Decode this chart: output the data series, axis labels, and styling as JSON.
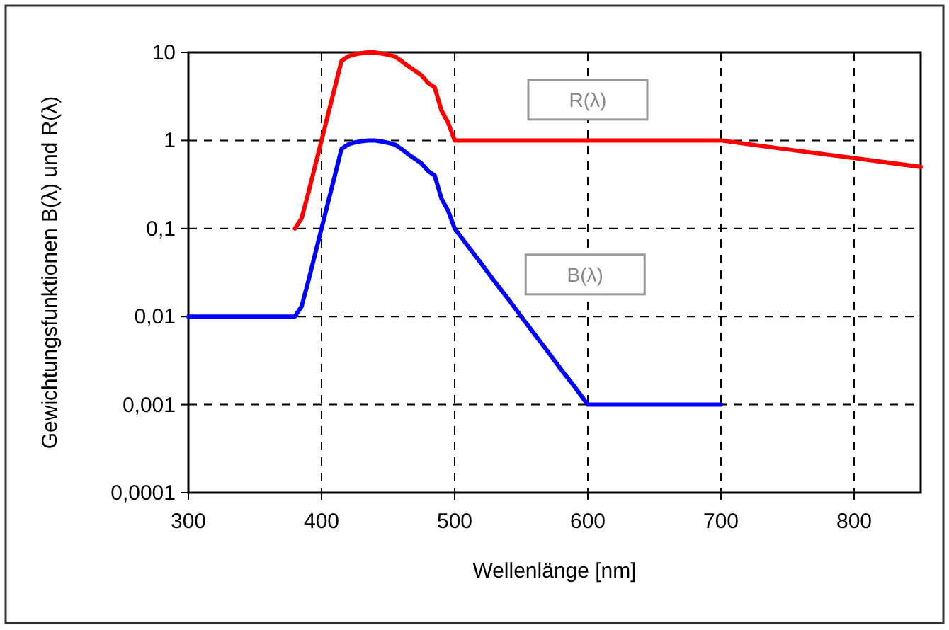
{
  "chart_data": {
    "type": "line",
    "xlabel": "Wellenlänge [nm]",
    "ylabel": "Gewichtungsfunktionen B(λ) und R(λ)",
    "log": "y",
    "grid": true,
    "legend": false,
    "marker": "none",
    "line_style": "solid",
    "xlim": [
      300,
      850
    ],
    "xticks": [
      300,
      400,
      500,
      600,
      700,
      800
    ],
    "ylim": [
      0.0001,
      10
    ],
    "yticks": [
      {
        "value": 0.0001,
        "label": "0,0001"
      },
      {
        "value": 0.001,
        "label": "0,001"
      },
      {
        "value": 0.01,
        "label": "0,01"
      },
      {
        "value": 0.1,
        "label": "0,1"
      },
      {
        "value": 1,
        "label": "1"
      },
      {
        "value": 10,
        "label": "10"
      }
    ],
    "series": [
      {
        "name": "R(λ)",
        "color": "#ff0000",
        "x": [
          380,
          385,
          390,
          395,
          400,
          405,
          410,
          415,
          420,
          425,
          430,
          435,
          440,
          445,
          450,
          455,
          460,
          465,
          470,
          475,
          480,
          485,
          490,
          495,
          500,
          600,
          700,
          750,
          800,
          850
        ],
        "values": [
          0.1,
          0.13,
          0.25,
          0.5,
          1,
          2,
          4,
          8,
          9,
          9.5,
          9.8,
          10,
          10,
          9.7,
          9.4,
          9,
          8,
          7,
          6.2,
          5.5,
          4.5,
          4,
          2.2,
          1.6,
          1,
          1,
          1,
          0.79,
          0.63,
          0.5
        ]
      },
      {
        "name": "B(λ)",
        "color": "#0000ff",
        "x": [
          300,
          380,
          385,
          390,
          395,
          400,
          405,
          410,
          415,
          420,
          425,
          430,
          435,
          440,
          445,
          450,
          455,
          460,
          465,
          470,
          475,
          480,
          485,
          490,
          495,
          500,
          510,
          520,
          530,
          540,
          550,
          560,
          570,
          580,
          590,
          600,
          700
        ],
        "values": [
          0.01,
          0.01,
          0.013,
          0.025,
          0.05,
          0.1,
          0.2,
          0.4,
          0.8,
          0.9,
          0.95,
          0.98,
          1,
          1,
          0.97,
          0.94,
          0.9,
          0.8,
          0.7,
          0.62,
          0.55,
          0.45,
          0.4,
          0.22,
          0.16,
          0.1,
          0.063,
          0.04,
          0.025,
          0.016,
          0.01,
          0.0063,
          0.004,
          0.0025,
          0.0016,
          0.001,
          0.001
        ]
      }
    ]
  }
}
